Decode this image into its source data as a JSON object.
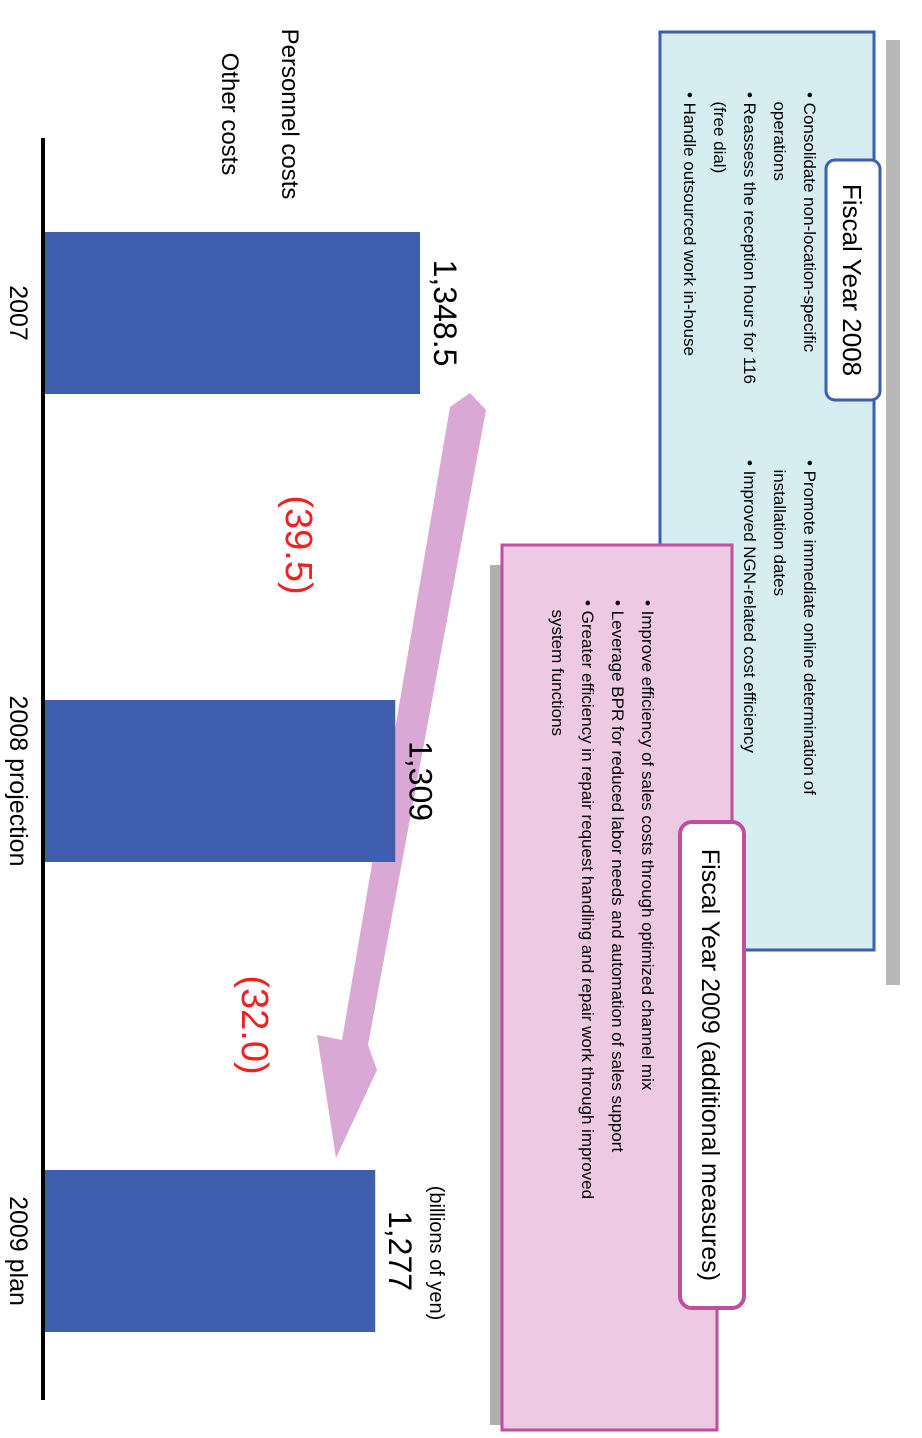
{
  "chart_data": {
    "type": "bar",
    "categories": [
      "2007",
      "2008 projection",
      "2009 plan"
    ],
    "values": [
      1348.5,
      1309,
      1277
    ],
    "value_labels": [
      "1,348.5",
      "1,309",
      "1,277"
    ],
    "reductions": [
      "(39.5)",
      "(32.0)"
    ],
    "unit_label": "(billions of yen)",
    "legend": [
      "Personnel costs",
      "Other costs"
    ],
    "bar_color": "#3f5fae",
    "arrow_color": "#d9a8d5",
    "reduction_color": "#ee2222"
  },
  "fy2008": {
    "title": "Fiscal Year 2008",
    "border_color": "#3d5db8",
    "fill_color": "#d6edf2",
    "col1": [
      "• Consolidate non-location-specific",
      "  operations",
      "• Reassess the reception hours for 116",
      "  (free dial)",
      "• Handle outsourced work in-house"
    ],
    "col2": [
      "• Promote immediate online determination of",
      "  installation dates",
      "• Improved NGN-related cost efficiency"
    ]
  },
  "fy2009": {
    "title": "Fiscal Year 2009 (additional measures)",
    "border_color": "#c04f9e",
    "fill_color": "#edc9e4",
    "items": [
      "• Improve efficiency of sales costs through optimized channel mix",
      "• Leverage BPR for reduced labor needs and automation of sales support",
      "• Greater efficiency in repair request handling and repair work through improved",
      "  system functions"
    ]
  }
}
